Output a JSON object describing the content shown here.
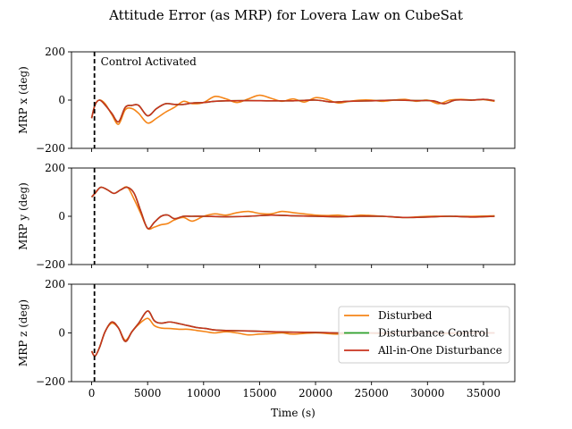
{
  "chart_data": {
    "type": "line",
    "title": "Attitude Error (as MRP) for Lovera Law on CubeSat",
    "xlabel": "Time (s)",
    "xlim": [
      -1800,
      37800
    ],
    "xticks": [
      0,
      5000,
      10000,
      15000,
      20000,
      25000,
      30000,
      35000
    ],
    "xtick_labels": [
      "0",
      "5000",
      "10000",
      "15000",
      "20000",
      "25000",
      "30000",
      "35000"
    ],
    "legend": {
      "placement": "lower-right of bottom panel",
      "entries": [
        "Disturbed",
        "Disturbance Control",
        "All-in-One Disturbance"
      ]
    },
    "colors": {
      "Disturbed": "#f58518",
      "Disturbance Control": "#2ca02c",
      "All-in-One Disturbance": "#c8321e"
    },
    "event_line": {
      "x": 250,
      "style": "black dashed",
      "label": "Control Activated"
    },
    "panels": [
      {
        "id": "x",
        "ylabel": "MRP x (deg)",
        "ylim": [
          -200,
          200
        ],
        "yticks": [
          -200,
          0,
          200
        ],
        "ytick_labels": [
          "−200",
          "0",
          "200"
        ],
        "series": [
          {
            "name": "Disturbed",
            "x": [
              0,
              300,
              700,
              1200,
              1800,
              2400,
              3000,
              3600,
              4200,
              5000,
              5800,
              6600,
              7400,
              8200,
              9000,
              10000,
              11000,
              12000,
              13000,
              14000,
              15000,
              16000,
              17000,
              18000,
              19000,
              20000,
              21000,
              22000,
              23000,
              24000,
              25000,
              26000,
              27000,
              28000,
              29000,
              30000,
              31000,
              32000,
              33000,
              34000,
              35000,
              36000
            ],
            "y": [
              -75,
              -20,
              0,
              -15,
              -60,
              -100,
              -40,
              -35,
              -55,
              -95,
              -75,
              -50,
              -30,
              -5,
              -15,
              -10,
              15,
              5,
              -10,
              5,
              20,
              8,
              -5,
              5,
              -8,
              10,
              3,
              -12,
              -5,
              0,
              0,
              -5,
              0,
              3,
              -5,
              0,
              -15,
              0,
              3,
              0,
              2,
              -5
            ]
          },
          {
            "name": "Disturbance Control",
            "x": [
              0,
              300,
              700,
              1200,
              1800,
              2400,
              3000,
              3600,
              4200,
              5000,
              5800,
              6600,
              7400,
              8200,
              9000,
              10000,
              11000,
              12000,
              14000,
              16000,
              18000,
              20000,
              21500,
              23000,
              25000,
              27000,
              29000,
              30500,
              31500,
              32500,
              34000,
              35000,
              36000
            ],
            "y": [
              -75,
              -20,
              0,
              -20,
              -55,
              -90,
              -30,
              -22,
              -22,
              -65,
              -35,
              -15,
              -18,
              -18,
              -12,
              -10,
              -5,
              -3,
              -2,
              -3,
              -3,
              0,
              -8,
              -5,
              -3,
              0,
              -2,
              -3,
              -15,
              0,
              0,
              3,
              -2
            ]
          },
          {
            "name": "All-in-One Disturbance",
            "x": [
              0,
              300,
              700,
              1200,
              1800,
              2400,
              3000,
              3600,
              4200,
              5000,
              5800,
              6600,
              7400,
              8200,
              9000,
              10000,
              11000,
              12000,
              14000,
              16000,
              18000,
              20000,
              21500,
              23000,
              25000,
              27000,
              29000,
              30500,
              31500,
              32500,
              34000,
              35000,
              36000
            ],
            "y": [
              -75,
              -20,
              0,
              -20,
              -55,
              -90,
              -30,
              -22,
              -22,
              -65,
              -35,
              -15,
              -18,
              -18,
              -12,
              -10,
              -5,
              -3,
              -2,
              -3,
              -3,
              0,
              -8,
              -5,
              -3,
              0,
              -2,
              -3,
              -15,
              0,
              0,
              3,
              -2
            ]
          }
        ]
      },
      {
        "id": "y",
        "ylabel": "MRP y (deg)",
        "ylim": [
          -200,
          200
        ],
        "yticks": [
          -200,
          0,
          200
        ],
        "ytick_labels": [
          "−200",
          "0",
          "200"
        ],
        "series": [
          {
            "name": "Disturbed",
            "x": [
              0,
              300,
              800,
              1400,
              2000,
              2600,
              3200,
              3800,
              4400,
              5000,
              5600,
              6200,
              6800,
              7400,
              8200,
              9000,
              10000,
              11000,
              12000,
              13000,
              14000,
              15000,
              16000,
              17000,
              18000,
              19000,
              20000,
              21000,
              22000,
              23000,
              24000,
              25000,
              26000,
              28000,
              30000,
              32000,
              34000,
              36000
            ],
            "y": [
              80,
              95,
              120,
              110,
              95,
              110,
              120,
              70,
              10,
              -50,
              -45,
              -35,
              -30,
              -15,
              -5,
              -20,
              0,
              10,
              5,
              15,
              20,
              12,
              10,
              20,
              15,
              10,
              5,
              3,
              5,
              0,
              5,
              3,
              0,
              -5,
              0,
              0,
              0,
              2
            ]
          },
          {
            "name": "Disturbance Control",
            "x": [
              0,
              300,
              800,
              1400,
              2000,
              2600,
              3200,
              3800,
              4400,
              5000,
              5600,
              6200,
              6800,
              7400,
              8200,
              9000,
              10000,
              12000,
              14000,
              16000,
              18000,
              20000,
              22000,
              24000,
              26000,
              28000,
              30000,
              32000,
              34000,
              36000
            ],
            "y": [
              80,
              95,
              120,
              110,
              95,
              110,
              120,
              95,
              20,
              -50,
              -25,
              0,
              5,
              -10,
              0,
              0,
              0,
              -2,
              0,
              5,
              2,
              0,
              -2,
              0,
              0,
              -5,
              -3,
              0,
              -3,
              0
            ]
          },
          {
            "name": "All-in-One Disturbance",
            "x": [
              0,
              300,
              800,
              1400,
              2000,
              2600,
              3200,
              3800,
              4400,
              5000,
              5600,
              6200,
              6800,
              7400,
              8200,
              9000,
              10000,
              12000,
              14000,
              16000,
              18000,
              20000,
              22000,
              24000,
              26000,
              28000,
              30000,
              32000,
              34000,
              36000
            ],
            "y": [
              80,
              95,
              120,
              110,
              95,
              110,
              120,
              95,
              20,
              -50,
              -25,
              0,
              5,
              -10,
              0,
              0,
              0,
              -2,
              0,
              5,
              2,
              0,
              -2,
              0,
              0,
              -5,
              -3,
              0,
              -3,
              0
            ]
          }
        ]
      },
      {
        "id": "z",
        "ylabel": "MRP z (deg)",
        "ylim": [
          -200,
          200
        ],
        "yticks": [
          -200,
          0,
          200
        ],
        "ytick_labels": [
          "−200",
          "0",
          "200"
        ],
        "series": [
          {
            "name": "Disturbed",
            "x": [
              0,
              300,
              700,
              1200,
              1800,
              2400,
              3000,
              3600,
              4200,
              5000,
              5600,
              6200,
              7000,
              7800,
              8600,
              9400,
              10200,
              11000,
              12000,
              13000,
              14000,
              15000,
              16000,
              17000,
              18000,
              20000,
              22000,
              24000,
              26000,
              28000,
              30000,
              32000,
              34000,
              36000
            ],
            "y": [
              -75,
              -95,
              -60,
              5,
              40,
              20,
              -30,
              5,
              35,
              60,
              30,
              20,
              18,
              15,
              15,
              10,
              5,
              0,
              5,
              0,
              -8,
              -5,
              -3,
              0,
              -5,
              0,
              -5,
              0,
              -3,
              0,
              0,
              -3,
              0,
              0
            ]
          },
          {
            "name": "Disturbance Control",
            "x": [
              0,
              300,
              700,
              1200,
              1800,
              2400,
              3000,
              3600,
              4200,
              5000,
              5600,
              6200,
              7000,
              7800,
              8600,
              9400,
              10200,
              11000,
              12000,
              14000,
              16000,
              18000,
              20000,
              22000,
              24000,
              26000,
              28000,
              30000,
              32000,
              34000,
              36000
            ],
            "y": [
              -75,
              -95,
              -60,
              5,
              45,
              20,
              -35,
              5,
              40,
              90,
              50,
              40,
              45,
              38,
              30,
              22,
              18,
              12,
              10,
              8,
              5,
              3,
              2,
              0,
              0,
              0,
              0,
              0,
              0,
              0,
              0
            ]
          },
          {
            "name": "All-in-One Disturbance",
            "x": [
              0,
              300,
              700,
              1200,
              1800,
              2400,
              3000,
              3600,
              4200,
              5000,
              5600,
              6200,
              7000,
              7800,
              8600,
              9400,
              10200,
              11000,
              12000,
              14000,
              16000,
              18000,
              20000,
              22000,
              24000,
              26000,
              28000,
              30000,
              32000,
              34000,
              36000
            ],
            "y": [
              -75,
              -95,
              -60,
              5,
              45,
              20,
              -35,
              5,
              40,
              90,
              50,
              40,
              45,
              38,
              30,
              22,
              18,
              12,
              10,
              8,
              5,
              3,
              2,
              0,
              0,
              0,
              0,
              0,
              0,
              0,
              0
            ]
          }
        ]
      }
    ]
  }
}
